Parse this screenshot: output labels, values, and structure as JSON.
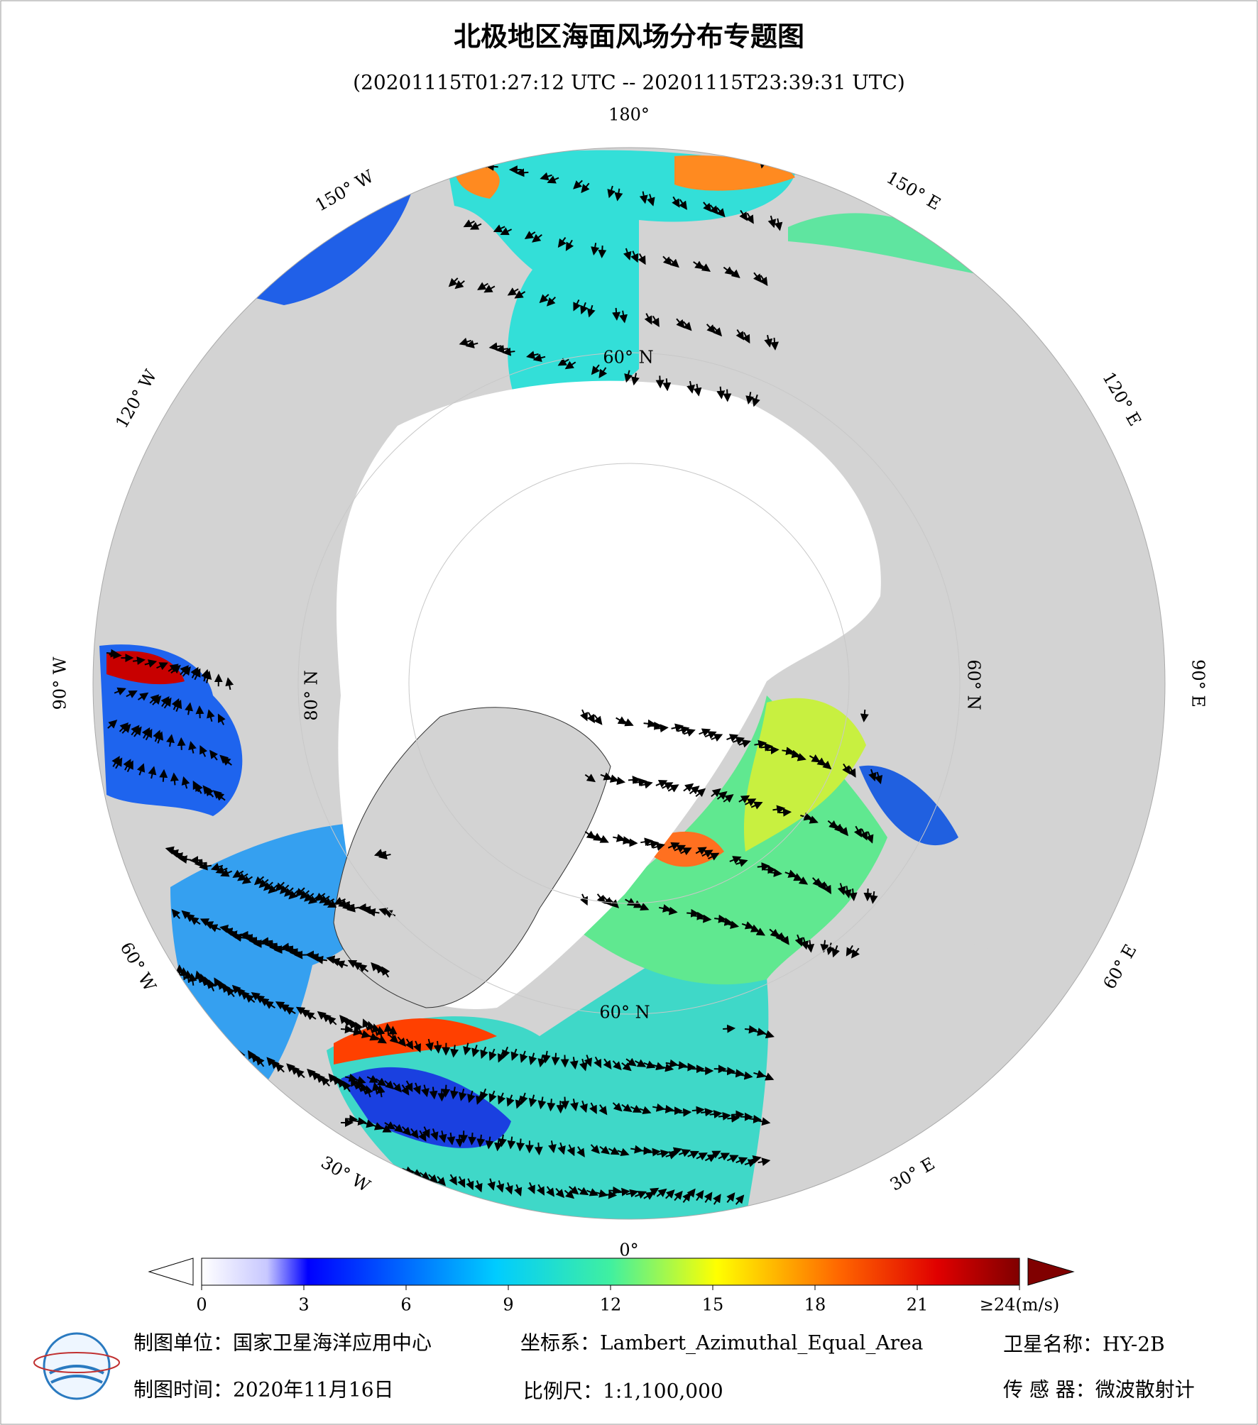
{
  "header": {
    "title": "北极地区海面风场分布专题图",
    "subtitle": "(20201115T01:27:12 UTC -- 20201115T23:39:31 UTC)"
  },
  "map": {
    "longitude_labels": [
      "180°",
      "150° E",
      "120° E",
      "90° E",
      "60° E",
      "30° E",
      "0°",
      "30° W",
      "60° W",
      "90° W",
      "120° W",
      "150° W"
    ],
    "latitude_labels": [
      "60° N",
      "80° N",
      "60° N",
      "60° N"
    ]
  },
  "colorbar": {
    "ticks": [
      0,
      3,
      6,
      9,
      12,
      15,
      18,
      21,
      {
        "value": 24,
        "label": "≥24(m/s)"
      }
    ],
    "lim": [
      0,
      24
    ]
  },
  "footer": {
    "unit": "制图单位：国家卫星海洋应用中心",
    "crs": "坐标系：Lambert_Azimuthal_Equal_Area",
    "satellite": "卫星名称：HY-2B",
    "date": "制图时间：2020年11月16日",
    "scale": "比例尺：1:1,100,000",
    "sensor": "传 感 器：微波散射计"
  }
}
